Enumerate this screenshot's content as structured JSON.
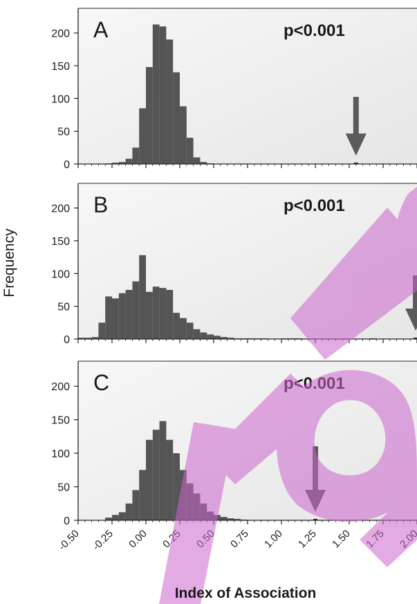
{
  "colors": {
    "bar": "#555555",
    "arrow": "#5a5a5a",
    "panel_bg_top": "#f7f7f7",
    "panel_bg_bottom": "#e6e6e6",
    "axis": "#222222",
    "watermark": "#cc66cc"
  },
  "chart_data": [
    {
      "type": "bar",
      "panel": "A",
      "annotation": "p<0.001",
      "xlabel": "Index of Association",
      "ylabel": "Frequency",
      "xlim": [
        -0.5,
        2.0
      ],
      "ylim": [
        0,
        225
      ],
      "yticks": [
        "0",
        "50",
        "100",
        "150",
        "200"
      ],
      "bin_start": -0.3,
      "bin_width": 0.05,
      "values": [
        1,
        2,
        3,
        8,
        25,
        85,
        148,
        213,
        210,
        190,
        140,
        88,
        40,
        10,
        3,
        1,
        0
      ],
      "observed_value": 1.55,
      "arrow_length": 85
    },
    {
      "type": "bar",
      "panel": "B",
      "annotation": "p<0.001",
      "xlabel": "Index of Association",
      "ylabel": "Frequency",
      "xlim": [
        -0.5,
        2.0
      ],
      "ylim": [
        0,
        225
      ],
      "yticks": [
        "0",
        "50",
        "100",
        "150",
        "200"
      ],
      "bin_start": -0.5,
      "bin_width": 0.05,
      "values": [
        2,
        2,
        3,
        25,
        65,
        62,
        70,
        75,
        88,
        128,
        72,
        80,
        78,
        75,
        40,
        32,
        25,
        15,
        10,
        7,
        5,
        3,
        2,
        1,
        1,
        1,
        1,
        1,
        0,
        0,
        1,
        1,
        1,
        0,
        0,
        0,
        0,
        0,
        0,
        0,
        0,
        0,
        0,
        1,
        0,
        0,
        0,
        0,
        0,
        0
      ],
      "observed_value": 1.99,
      "arrow_length": 80
    },
    {
      "type": "bar",
      "panel": "C",
      "annotation": "p<0.001",
      "xlabel": "Index of Association",
      "ylabel": "Frequency",
      "xlim": [
        -0.5,
        2.0
      ],
      "ylim": [
        0,
        225
      ],
      "yticks": [
        "0",
        "50",
        "100",
        "150",
        "200"
      ],
      "xticks": [
        "-0.50",
        "-0.25",
        "0.00",
        "0.25",
        "0.50",
        "0.75",
        "1.00",
        "1.25",
        "1.50",
        "1.75",
        "2.00"
      ],
      "bin_start": -0.3,
      "bin_width": 0.05,
      "values": [
        4,
        8,
        12,
        25,
        45,
        75,
        120,
        135,
        148,
        120,
        100,
        75,
        55,
        40,
        25,
        13,
        8,
        5,
        3,
        2,
        1,
        0
      ],
      "observed_value": 1.25,
      "arrow_length": 95
    }
  ],
  "axes": {
    "ylabel": "Frequency",
    "xlabel": "Index of Association"
  }
}
